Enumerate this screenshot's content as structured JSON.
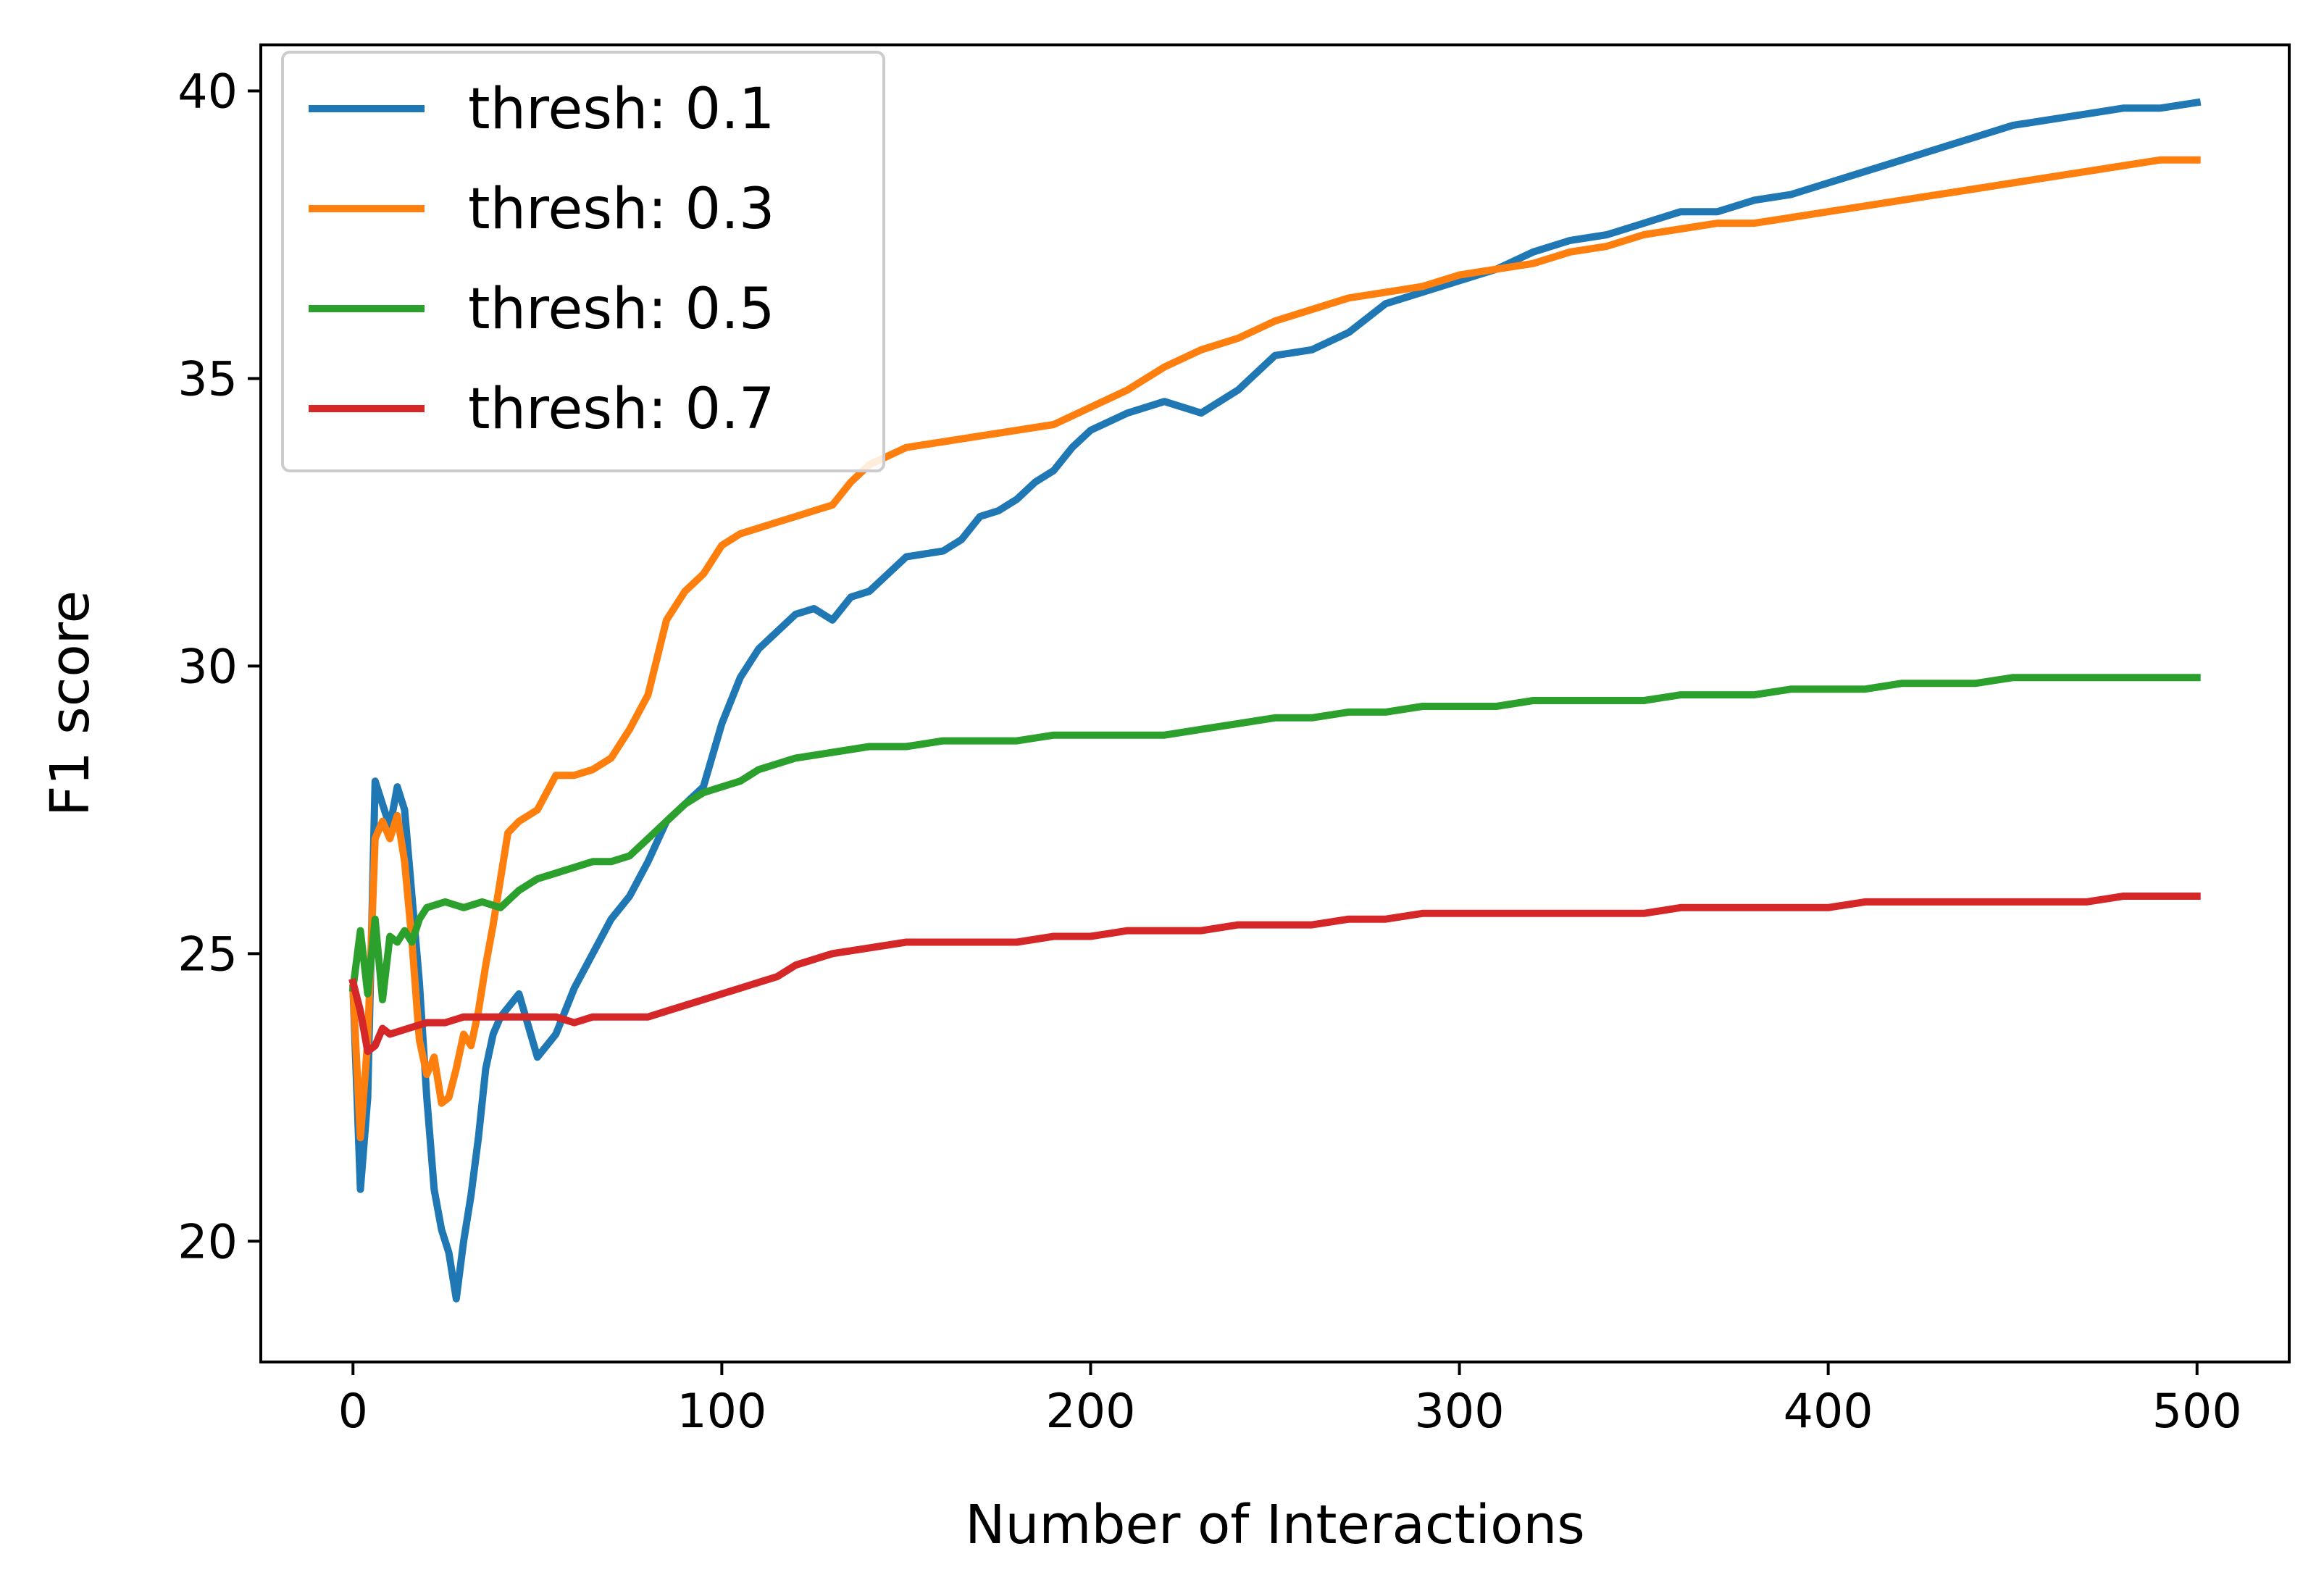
{
  "chart_data": {
    "type": "line",
    "title": "",
    "xlabel": "Number of Interactions",
    "ylabel": "F1 score",
    "xlim": [
      -25,
      525
    ],
    "ylim": [
      17.9,
      40.8
    ],
    "xticks": [
      0,
      100,
      200,
      300,
      400,
      500
    ],
    "yticks": [
      20,
      25,
      30,
      35,
      40
    ],
    "grid": false,
    "legend_position": "top-left",
    "series": [
      {
        "name": "thresh: 0.1",
        "color": "#1f77b4",
        "points": [
          [
            0,
            24.4
          ],
          [
            2,
            20.9
          ],
          [
            4,
            22.5
          ],
          [
            6,
            28.0
          ],
          [
            8,
            27.6
          ],
          [
            10,
            27.2
          ],
          [
            12,
            27.9
          ],
          [
            14,
            27.5
          ],
          [
            16,
            26.0
          ],
          [
            18,
            24.5
          ],
          [
            20,
            22.5
          ],
          [
            22,
            20.9
          ],
          [
            24,
            20.2
          ],
          [
            26,
            19.8
          ],
          [
            28,
            19.0
          ],
          [
            30,
            20.0
          ],
          [
            32,
            20.8
          ],
          [
            34,
            21.8
          ],
          [
            36,
            23.0
          ],
          [
            38,
            23.6
          ],
          [
            40,
            23.9
          ],
          [
            45,
            24.3
          ],
          [
            50,
            23.2
          ],
          [
            55,
            23.6
          ],
          [
            60,
            24.4
          ],
          [
            65,
            25.0
          ],
          [
            70,
            25.6
          ],
          [
            75,
            26.0
          ],
          [
            80,
            26.6
          ],
          [
            85,
            27.3
          ],
          [
            90,
            27.6
          ],
          [
            95,
            27.9
          ],
          [
            100,
            29.0
          ],
          [
            105,
            29.8
          ],
          [
            110,
            30.3
          ],
          [
            115,
            30.6
          ],
          [
            120,
            30.9
          ],
          [
            125,
            31.0
          ],
          [
            130,
            30.8
          ],
          [
            135,
            31.2
          ],
          [
            140,
            31.3
          ],
          [
            145,
            31.6
          ],
          [
            150,
            31.9
          ],
          [
            160,
            32.0
          ],
          [
            165,
            32.2
          ],
          [
            170,
            32.6
          ],
          [
            175,
            32.7
          ],
          [
            180,
            32.9
          ],
          [
            185,
            33.2
          ],
          [
            190,
            33.4
          ],
          [
            195,
            33.8
          ],
          [
            200,
            34.1
          ],
          [
            210,
            34.4
          ],
          [
            220,
            34.6
          ],
          [
            230,
            34.4
          ],
          [
            240,
            34.8
          ],
          [
            250,
            35.4
          ],
          [
            260,
            35.5
          ],
          [
            270,
            35.8
          ],
          [
            280,
            36.3
          ],
          [
            290,
            36.5
          ],
          [
            300,
            36.7
          ],
          [
            310,
            36.9
          ],
          [
            320,
            37.2
          ],
          [
            330,
            37.4
          ],
          [
            340,
            37.5
          ],
          [
            350,
            37.7
          ],
          [
            360,
            37.9
          ],
          [
            370,
            37.9
          ],
          [
            380,
            38.1
          ],
          [
            390,
            38.2
          ],
          [
            400,
            38.4
          ],
          [
            410,
            38.6
          ],
          [
            420,
            38.8
          ],
          [
            430,
            39.0
          ],
          [
            440,
            39.2
          ],
          [
            450,
            39.4
          ],
          [
            460,
            39.5
          ],
          [
            470,
            39.6
          ],
          [
            480,
            39.7
          ],
          [
            490,
            39.7
          ],
          [
            500,
            39.8
          ]
        ]
      },
      {
        "name": "thresh: 0.3",
        "color": "#ff7f0e",
        "points": [
          [
            0,
            24.4
          ],
          [
            2,
            21.8
          ],
          [
            4,
            23.5
          ],
          [
            6,
            27.0
          ],
          [
            8,
            27.3
          ],
          [
            10,
            27.0
          ],
          [
            12,
            27.4
          ],
          [
            14,
            26.6
          ],
          [
            16,
            25.2
          ],
          [
            18,
            23.5
          ],
          [
            20,
            22.9
          ],
          [
            22,
            23.2
          ],
          [
            24,
            22.4
          ],
          [
            26,
            22.5
          ],
          [
            28,
            23.0
          ],
          [
            30,
            23.6
          ],
          [
            32,
            23.4
          ],
          [
            34,
            24.0
          ],
          [
            36,
            24.8
          ],
          [
            38,
            25.5
          ],
          [
            40,
            26.3
          ],
          [
            42,
            27.1
          ],
          [
            45,
            27.3
          ],
          [
            50,
            27.5
          ],
          [
            55,
            28.1
          ],
          [
            60,
            28.1
          ],
          [
            65,
            28.2
          ],
          [
            70,
            28.4
          ],
          [
            75,
            28.9
          ],
          [
            80,
            29.5
          ],
          [
            85,
            30.8
          ],
          [
            90,
            31.3
          ],
          [
            95,
            31.6
          ],
          [
            100,
            32.1
          ],
          [
            105,
            32.3
          ],
          [
            110,
            32.4
          ],
          [
            115,
            32.5
          ],
          [
            120,
            32.6
          ],
          [
            125,
            32.7
          ],
          [
            130,
            32.8
          ],
          [
            135,
            33.2
          ],
          [
            140,
            33.5
          ],
          [
            150,
            33.8
          ],
          [
            160,
            33.9
          ],
          [
            170,
            34.0
          ],
          [
            180,
            34.1
          ],
          [
            190,
            34.2
          ],
          [
            200,
            34.5
          ],
          [
            210,
            34.8
          ],
          [
            220,
            35.2
          ],
          [
            230,
            35.5
          ],
          [
            240,
            35.7
          ],
          [
            250,
            36.0
          ],
          [
            260,
            36.2
          ],
          [
            270,
            36.4
          ],
          [
            280,
            36.5
          ],
          [
            290,
            36.6
          ],
          [
            300,
            36.8
          ],
          [
            310,
            36.9
          ],
          [
            320,
            37.0
          ],
          [
            330,
            37.2
          ],
          [
            340,
            37.3
          ],
          [
            350,
            37.5
          ],
          [
            360,
            37.6
          ],
          [
            370,
            37.7
          ],
          [
            380,
            37.7
          ],
          [
            390,
            37.8
          ],
          [
            400,
            37.9
          ],
          [
            410,
            38.0
          ],
          [
            420,
            38.1
          ],
          [
            430,
            38.2
          ],
          [
            440,
            38.3
          ],
          [
            450,
            38.4
          ],
          [
            460,
            38.5
          ],
          [
            470,
            38.6
          ],
          [
            480,
            38.7
          ],
          [
            490,
            38.8
          ],
          [
            500,
            38.8
          ]
        ]
      },
      {
        "name": "thresh: 0.5",
        "color": "#2ca02c",
        "points": [
          [
            0,
            24.4
          ],
          [
            2,
            25.4
          ],
          [
            4,
            24.3
          ],
          [
            6,
            25.6
          ],
          [
            8,
            24.2
          ],
          [
            10,
            25.3
          ],
          [
            12,
            25.2
          ],
          [
            14,
            25.4
          ],
          [
            16,
            25.2
          ],
          [
            18,
            25.6
          ],
          [
            20,
            25.8
          ],
          [
            25,
            25.9
          ],
          [
            30,
            25.8
          ],
          [
            35,
            25.9
          ],
          [
            40,
            25.8
          ],
          [
            45,
            26.1
          ],
          [
            50,
            26.3
          ],
          [
            55,
            26.4
          ],
          [
            60,
            26.5
          ],
          [
            65,
            26.6
          ],
          [
            70,
            26.6
          ],
          [
            75,
            26.7
          ],
          [
            80,
            27.0
          ],
          [
            85,
            27.3
          ],
          [
            90,
            27.6
          ],
          [
            95,
            27.8
          ],
          [
            100,
            27.9
          ],
          [
            105,
            28.0
          ],
          [
            110,
            28.2
          ],
          [
            115,
            28.3
          ],
          [
            120,
            28.4
          ],
          [
            130,
            28.5
          ],
          [
            140,
            28.6
          ],
          [
            150,
            28.6
          ],
          [
            160,
            28.7
          ],
          [
            170,
            28.7
          ],
          [
            180,
            28.7
          ],
          [
            190,
            28.8
          ],
          [
            200,
            28.8
          ],
          [
            210,
            28.8
          ],
          [
            220,
            28.8
          ],
          [
            230,
            28.9
          ],
          [
            240,
            29.0
          ],
          [
            250,
            29.1
          ],
          [
            260,
            29.1
          ],
          [
            270,
            29.2
          ],
          [
            280,
            29.2
          ],
          [
            290,
            29.3
          ],
          [
            300,
            29.3
          ],
          [
            310,
            29.3
          ],
          [
            320,
            29.4
          ],
          [
            330,
            29.4
          ],
          [
            340,
            29.4
          ],
          [
            350,
            29.4
          ],
          [
            360,
            29.5
          ],
          [
            370,
            29.5
          ],
          [
            380,
            29.5
          ],
          [
            390,
            29.6
          ],
          [
            400,
            29.6
          ],
          [
            410,
            29.6
          ],
          [
            420,
            29.7
          ],
          [
            430,
            29.7
          ],
          [
            440,
            29.7
          ],
          [
            450,
            29.8
          ],
          [
            460,
            29.8
          ],
          [
            470,
            29.8
          ],
          [
            480,
            29.8
          ],
          [
            490,
            29.8
          ],
          [
            500,
            29.8
          ]
        ]
      },
      {
        "name": "thresh: 0.7",
        "color": "#d62728",
        "points": [
          [
            0,
            24.5
          ],
          [
            2,
            24.0
          ],
          [
            4,
            23.3
          ],
          [
            6,
            23.4
          ],
          [
            8,
            23.7
          ],
          [
            10,
            23.6
          ],
          [
            15,
            23.7
          ],
          [
            20,
            23.8
          ],
          [
            25,
            23.8
          ],
          [
            30,
            23.9
          ],
          [
            35,
            23.9
          ],
          [
            40,
            23.9
          ],
          [
            45,
            23.9
          ],
          [
            50,
            23.9
          ],
          [
            55,
            23.9
          ],
          [
            60,
            23.8
          ],
          [
            65,
            23.9
          ],
          [
            70,
            23.9
          ],
          [
            75,
            23.9
          ],
          [
            80,
            23.9
          ],
          [
            85,
            24.0
          ],
          [
            90,
            24.1
          ],
          [
            95,
            24.2
          ],
          [
            100,
            24.3
          ],
          [
            105,
            24.4
          ],
          [
            110,
            24.5
          ],
          [
            115,
            24.6
          ],
          [
            120,
            24.8
          ],
          [
            130,
            25.0
          ],
          [
            140,
            25.1
          ],
          [
            150,
            25.2
          ],
          [
            160,
            25.2
          ],
          [
            170,
            25.2
          ],
          [
            180,
            25.2
          ],
          [
            190,
            25.3
          ],
          [
            200,
            25.3
          ],
          [
            210,
            25.4
          ],
          [
            220,
            25.4
          ],
          [
            230,
            25.4
          ],
          [
            240,
            25.5
          ],
          [
            250,
            25.5
          ],
          [
            260,
            25.5
          ],
          [
            270,
            25.6
          ],
          [
            280,
            25.6
          ],
          [
            290,
            25.7
          ],
          [
            300,
            25.7
          ],
          [
            310,
            25.7
          ],
          [
            320,
            25.7
          ],
          [
            330,
            25.7
          ],
          [
            340,
            25.7
          ],
          [
            350,
            25.7
          ],
          [
            360,
            25.8
          ],
          [
            370,
            25.8
          ],
          [
            380,
            25.8
          ],
          [
            390,
            25.8
          ],
          [
            400,
            25.8
          ],
          [
            410,
            25.9
          ],
          [
            420,
            25.9
          ],
          [
            430,
            25.9
          ],
          [
            440,
            25.9
          ],
          [
            450,
            25.9
          ],
          [
            460,
            25.9
          ],
          [
            470,
            25.9
          ],
          [
            480,
            26.0
          ],
          [
            490,
            26.0
          ],
          [
            500,
            26.0
          ]
        ]
      }
    ]
  }
}
